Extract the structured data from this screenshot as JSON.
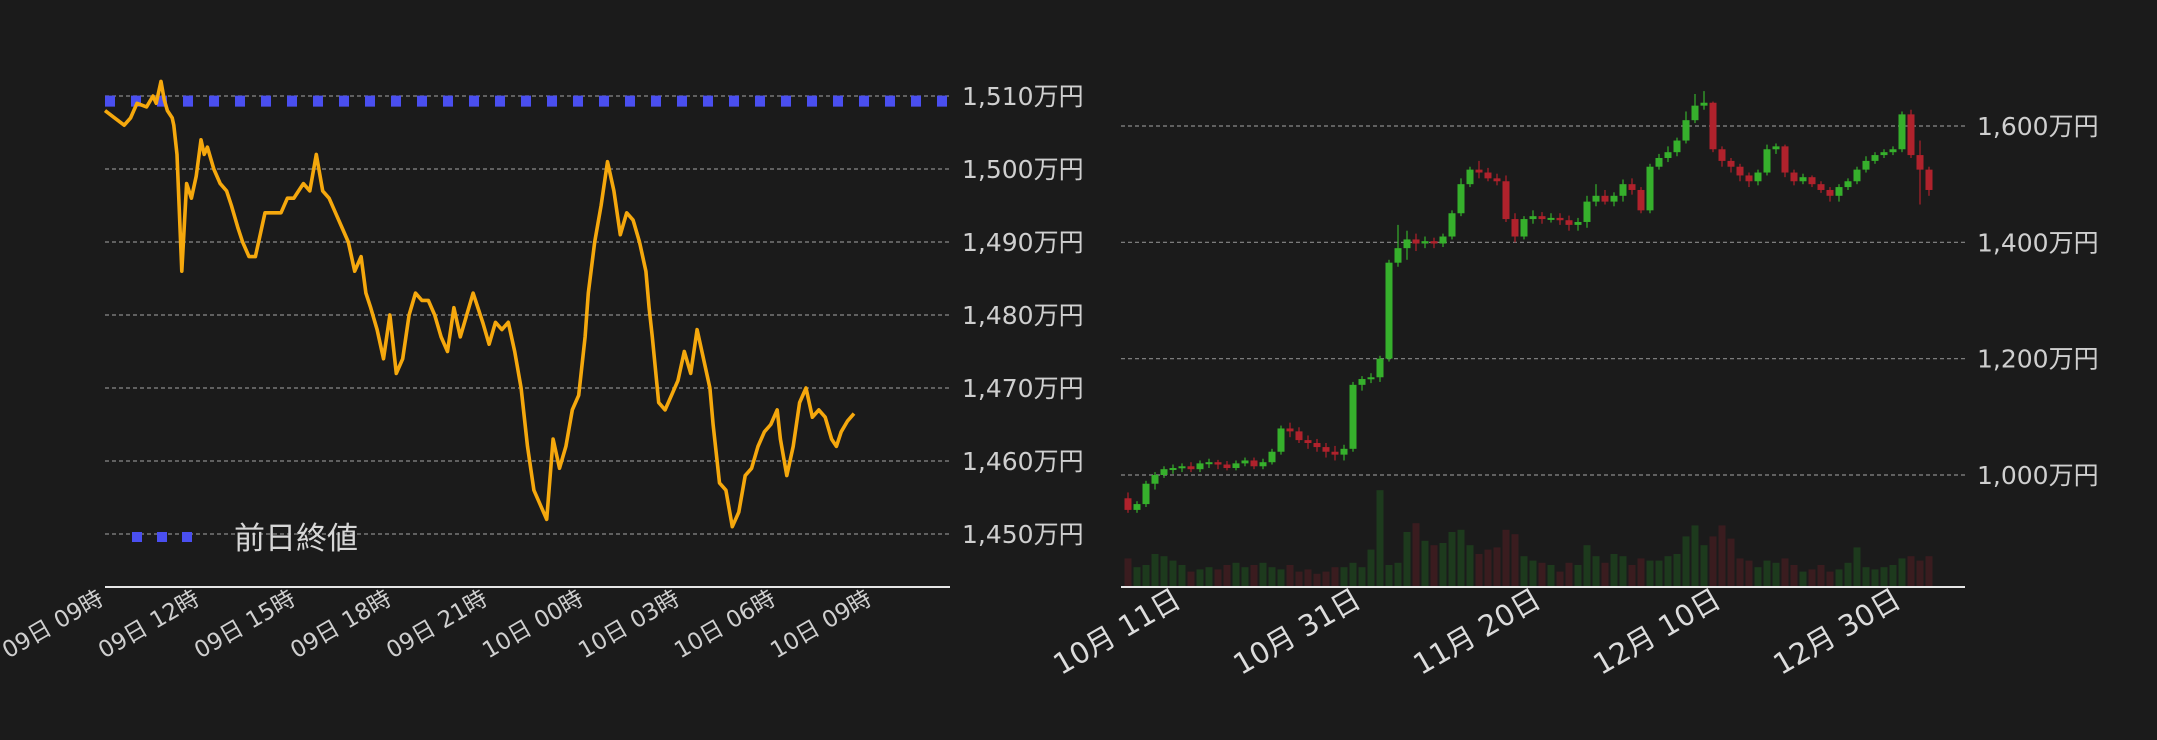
{
  "colors": {
    "background": "#1b1b1b",
    "price_line": "#f5a80d",
    "prev_close": "#4a4ff0",
    "grid": "#8a8a8a",
    "axis": "#e6e6e6",
    "up": "#36b02c",
    "down": "#b0222c",
    "text": "#cfcfcf"
  },
  "chart_data": [
    {
      "type": "line",
      "y_unit": "万円",
      "yticks": [
        1450,
        1460,
        1470,
        1480,
        1490,
        1500,
        1510
      ],
      "ytick_labels": [
        "1,450万円",
        "1,460万円",
        "1,470万円",
        "1,480万円",
        "1,490万円",
        "1,500万円",
        "1,510万円"
      ],
      "ylim": [
        1443,
        1513
      ],
      "x_labels": [
        "09日 09時",
        "09日 12時",
        "09日 15時",
        "09日 18時",
        "09日 21時",
        "10日 00時",
        "10日 03時",
        "10日 06時",
        "10日 09時"
      ],
      "x_hours": [
        0,
        3,
        6,
        9,
        12,
        15,
        18,
        21,
        24
      ],
      "xlim": [
        0,
        26.4
      ],
      "grid": true,
      "legend": {
        "position": "bottom-left",
        "entries": [
          {
            "name": "前日終値",
            "style": "dotted"
          }
        ]
      },
      "series": [
        {
          "name": "前日終値",
          "style": "dotted",
          "x": [
            0,
            26.4
          ],
          "y": [
            1509.3,
            1509.3
          ]
        },
        {
          "style": "line",
          "x": [
            0,
            0.3,
            0.6,
            0.8,
            1.0,
            1.3,
            1.5,
            1.6,
            1.75,
            1.85,
            1.95,
            2.1,
            2.15,
            2.25,
            2.4,
            2.55,
            2.7,
            2.85,
            3.0,
            3.1,
            3.2,
            3.4,
            3.6,
            3.8,
            3.95,
            4.15,
            4.3,
            4.5,
            4.7,
            5.0,
            5.3,
            5.5,
            5.7,
            5.9,
            6.05,
            6.2,
            6.4,
            6.6,
            6.8,
            7.0,
            7.2,
            7.4,
            7.6,
            7.8,
            8.0,
            8.15,
            8.3,
            8.5,
            8.7,
            8.9,
            9.1,
            9.3,
            9.5,
            9.7,
            9.9,
            10.1,
            10.3,
            10.5,
            10.7,
            10.9,
            11.1,
            11.3,
            11.5,
            11.8,
            12.0,
            12.2,
            12.4,
            12.6,
            12.8,
            13.0,
            13.2,
            13.4,
            13.6,
            13.8,
            14.0,
            14.2,
            14.4,
            14.6,
            14.8,
            15.0,
            15.1,
            15.3,
            15.5,
            15.7,
            15.9,
            16.1,
            16.3,
            16.5,
            16.7,
            16.9,
            17.0,
            17.1,
            17.3,
            17.5,
            17.7,
            17.9,
            18.1,
            18.3,
            18.5,
            18.7,
            18.9,
            19.0,
            19.1,
            19.2,
            19.4,
            19.6,
            19.8,
            20.0,
            20.2,
            20.4,
            20.6,
            20.8,
            21.0,
            21.1,
            21.3,
            21.5,
            21.7,
            21.9,
            22.1,
            22.3,
            22.5,
            22.7,
            22.85,
            23.0,
            23.2,
            23.4
          ],
          "y": [
            1508.0,
            1507.0,
            1506.0,
            1507.0,
            1509.0,
            1508.5,
            1510.0,
            1509.0,
            1512.0,
            1509.5,
            1508.0,
            1507.0,
            1506.0,
            1502.0,
            1486.0,
            1498.0,
            1496.0,
            1499.0,
            1504.0,
            1502.0,
            1503.0,
            1500.0,
            1498.0,
            1497.0,
            1495.0,
            1492.0,
            1490.0,
            1488.0,
            1488.0,
            1494.0,
            1494.0,
            1494.0,
            1496.0,
            1496.0,
            1497.0,
            1498.0,
            1497.0,
            1502.0,
            1497.0,
            1496.0,
            1494.0,
            1492.0,
            1490.0,
            1486.0,
            1488.0,
            1483.0,
            1481.0,
            1478.0,
            1474.0,
            1480.0,
            1472.0,
            1474.0,
            1480.0,
            1483.0,
            1482.0,
            1482.0,
            1480.0,
            1477.0,
            1475.0,
            1481.0,
            1477.0,
            1480.0,
            1483.0,
            1479.0,
            1476.0,
            1479.0,
            1478.0,
            1479.0,
            1475.0,
            1470.0,
            1462.0,
            1456.0,
            1454.0,
            1452.0,
            1463.0,
            1459.0,
            1462.0,
            1467.0,
            1469.0,
            1477.0,
            1483.0,
            1490.0,
            1495.0,
            1501.0,
            1497.0,
            1491.0,
            1494.0,
            1493.0,
            1490.0,
            1486.0,
            1481.0,
            1477.0,
            1468.0,
            1467.0,
            1469.0,
            1471.0,
            1475.0,
            1472.0,
            1478.0,
            1474.0,
            1470.0,
            1465.0,
            1461.0,
            1457.0,
            1456.0,
            1451.0,
            1453.0,
            1458.0,
            1459.0,
            1462.0,
            1464.0,
            1465.0,
            1467.0,
            1463.0,
            1458.0,
            1462.0,
            1468.0,
            1470.0,
            1466.0,
            1467.0,
            1466.0,
            1463.0,
            1462.0,
            1464.0,
            1465.5,
            1466.5
          ]
        }
      ]
    },
    {
      "type": "candlestick",
      "y_unit": "万円",
      "yticks": [
        1000,
        1200,
        1400,
        1600
      ],
      "ytick_labels": [
        "1,000万円",
        "1,200万円",
        "1,400万円",
        "1,600万円"
      ],
      "ylim": [
        810,
        1680
      ],
      "x_labels": [
        "10月 11日",
        "10月 31日",
        "11月 20日",
        "12月 10日",
        "12月 30日"
      ],
      "x_label_index": [
        0,
        20,
        40,
        60,
        80
      ],
      "grid": true,
      "volume_shown": true,
      "candles": [
        [
          960,
          940,
          970,
          935
        ],
        [
          940,
          950,
          955,
          935
        ],
        [
          950,
          985,
          990,
          945
        ],
        [
          985,
          1000,
          1005,
          975
        ],
        [
          1000,
          1010,
          1015,
          995
        ],
        [
          1010,
          1012,
          1018,
          1002
        ],
        [
          1012,
          1015,
          1020,
          1005
        ],
        [
          1015,
          1010,
          1022,
          1005
        ],
        [
          1010,
          1020,
          1025,
          1005
        ],
        [
          1020,
          1022,
          1028,
          1012
        ],
        [
          1022,
          1018,
          1026,
          1010
        ],
        [
          1018,
          1012,
          1024,
          1008
        ],
        [
          1012,
          1020,
          1025,
          1008
        ],
        [
          1020,
          1025,
          1030,
          1015
        ],
        [
          1025,
          1015,
          1030,
          1010
        ],
        [
          1015,
          1022,
          1028,
          1010
        ],
        [
          1022,
          1040,
          1045,
          1018
        ],
        [
          1040,
          1080,
          1085,
          1035
        ],
        [
          1080,
          1075,
          1090,
          1065
        ],
        [
          1075,
          1060,
          1082,
          1055
        ],
        [
          1060,
          1055,
          1068,
          1045
        ],
        [
          1055,
          1048,
          1062,
          1040
        ],
        [
          1048,
          1040,
          1055,
          1030
        ],
        [
          1040,
          1035,
          1050,
          1025
        ],
        [
          1035,
          1045,
          1052,
          1025
        ],
        [
          1045,
          1155,
          1160,
          1040
        ],
        [
          1155,
          1165,
          1170,
          1145
        ],
        [
          1165,
          1168,
          1175,
          1158
        ],
        [
          1168,
          1200,
          1205,
          1160
        ],
        [
          1200,
          1365,
          1370,
          1195
        ],
        [
          1365,
          1390,
          1430,
          1358
        ],
        [
          1390,
          1405,
          1420,
          1370
        ],
        [
          1405,
          1398,
          1415,
          1385
        ],
        [
          1398,
          1402,
          1410,
          1390
        ],
        [
          1402,
          1398,
          1408,
          1390
        ],
        [
          1398,
          1410,
          1415,
          1392
        ],
        [
          1410,
          1450,
          1455,
          1405
        ],
        [
          1450,
          1500,
          1510,
          1445
        ],
        [
          1500,
          1525,
          1530,
          1495
        ],
        [
          1525,
          1520,
          1540,
          1510
        ],
        [
          1520,
          1510,
          1528,
          1505
        ],
        [
          1510,
          1505,
          1518,
          1498
        ],
        [
          1505,
          1440,
          1515,
          1435
        ],
        [
          1440,
          1410,
          1450,
          1400
        ],
        [
          1410,
          1440,
          1445,
          1405
        ],
        [
          1440,
          1445,
          1455,
          1432
        ],
        [
          1445,
          1440,
          1452,
          1432
        ],
        [
          1440,
          1442,
          1450,
          1434
        ],
        [
          1442,
          1438,
          1450,
          1430
        ],
        [
          1438,
          1430,
          1446,
          1420
        ],
        [
          1430,
          1435,
          1442,
          1420
        ],
        [
          1435,
          1470,
          1480,
          1425
        ],
        [
          1470,
          1480,
          1500,
          1462
        ],
        [
          1480,
          1470,
          1490,
          1465
        ],
        [
          1470,
          1480,
          1486,
          1462
        ],
        [
          1480,
          1500,
          1508,
          1470
        ],
        [
          1500,
          1490,
          1510,
          1482
        ],
        [
          1490,
          1455,
          1495,
          1450
        ],
        [
          1455,
          1530,
          1535,
          1450
        ],
        [
          1530,
          1545,
          1552,
          1525
        ],
        [
          1545,
          1555,
          1565,
          1538
        ],
        [
          1555,
          1575,
          1580,
          1548
        ],
        [
          1575,
          1610,
          1625,
          1570
        ],
        [
          1610,
          1635,
          1655,
          1605
        ],
        [
          1635,
          1640,
          1660,
          1628
        ],
        [
          1640,
          1560,
          1642,
          1555
        ],
        [
          1560,
          1540,
          1565,
          1530
        ],
        [
          1540,
          1530,
          1545,
          1520
        ],
        [
          1530,
          1515,
          1535,
          1505
        ],
        [
          1515,
          1505,
          1520,
          1495
        ],
        [
          1505,
          1520,
          1525,
          1498
        ],
        [
          1520,
          1560,
          1568,
          1515
        ],
        [
          1560,
          1565,
          1570,
          1552
        ],
        [
          1565,
          1520,
          1568,
          1512
        ],
        [
          1520,
          1505,
          1525,
          1498
        ],
        [
          1505,
          1512,
          1518,
          1500
        ],
        [
          1512,
          1500,
          1515,
          1495
        ],
        [
          1500,
          1490,
          1505,
          1485
        ],
        [
          1490,
          1480,
          1495,
          1470
        ],
        [
          1480,
          1495,
          1500,
          1470
        ],
        [
          1495,
          1505,
          1510,
          1490
        ],
        [
          1505,
          1525,
          1530,
          1500
        ],
        [
          1525,
          1540,
          1548,
          1520
        ],
        [
          1540,
          1550,
          1555,
          1535
        ],
        [
          1550,
          1555,
          1560,
          1545
        ],
        [
          1555,
          1560,
          1565,
          1550
        ],
        [
          1560,
          1620,
          1625,
          1555
        ],
        [
          1620,
          1550,
          1628,
          1545
        ],
        [
          1550,
          1525,
          1575,
          1465
        ],
        [
          1525,
          1490,
          1530,
          1480
        ]
      ],
      "volumes": [
        0.26,
        0.18,
        0.2,
        0.3,
        0.28,
        0.24,
        0.2,
        0.14,
        0.16,
        0.18,
        0.16,
        0.2,
        0.22,
        0.18,
        0.2,
        0.22,
        0.18,
        0.16,
        0.2,
        0.14,
        0.16,
        0.12,
        0.14,
        0.18,
        0.18,
        0.22,
        0.18,
        0.34,
        0.88,
        0.2,
        0.22,
        0.5,
        0.58,
        0.42,
        0.38,
        0.4,
        0.5,
        0.52,
        0.38,
        0.3,
        0.34,
        0.36,
        0.52,
        0.48,
        0.28,
        0.24,
        0.22,
        0.2,
        0.14,
        0.22,
        0.2,
        0.38,
        0.28,
        0.22,
        0.3,
        0.28,
        0.2,
        0.26,
        0.24,
        0.24,
        0.28,
        0.3,
        0.46,
        0.56,
        0.38,
        0.46,
        0.56,
        0.44,
        0.26,
        0.24,
        0.18,
        0.24,
        0.22,
        0.26,
        0.2,
        0.14,
        0.16,
        0.2,
        0.14,
        0.16,
        0.22,
        0.36,
        0.18,
        0.16,
        0.18,
        0.2,
        0.26,
        0.28,
        0.24,
        0.28
      ]
    }
  ]
}
